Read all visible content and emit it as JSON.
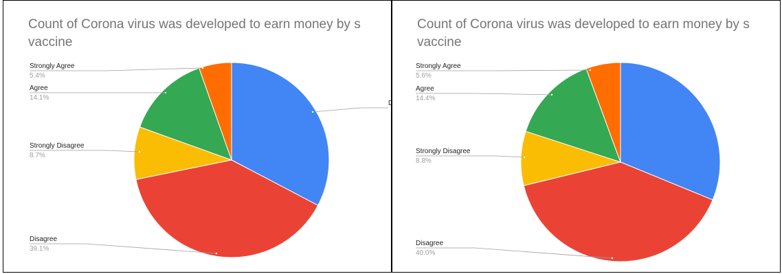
{
  "chart_data": [
    {
      "type": "pie",
      "title": "Count of Corona virus was developed to earn money by s vaccine",
      "title_lines": [
        "Count of Corona virus was developed to earn money by s",
        "vaccine"
      ],
      "slices": [
        {
          "label": "D",
          "value": 32.7,
          "percent_label": "",
          "color": "#4285f4"
        },
        {
          "label": "Disagree",
          "value": 39.1,
          "percent_label": "39.1%",
          "color": "#ea4335"
        },
        {
          "label": "Strongly Disagree",
          "value": 8.7,
          "percent_label": "8.7%",
          "color": "#fbbc04"
        },
        {
          "label": "Agree",
          "value": 14.1,
          "percent_label": "14.1%",
          "color": "#34a853"
        },
        {
          "label": "Strongly Agree",
          "value": 5.4,
          "percent_label": "5.4%",
          "color": "#ff6d01"
        }
      ]
    },
    {
      "type": "pie",
      "title": "Count of Corona virus was developed to earn money by s vaccine",
      "title_lines": [
        "Count of Corona virus was developed to earn money by s",
        "vaccine"
      ],
      "slices": [
        {
          "label": "",
          "value": 31.2,
          "percent_label": "",
          "color": "#4285f4"
        },
        {
          "label": "Disagree",
          "value": 40.0,
          "percent_label": "40.0%",
          "color": "#ea4335"
        },
        {
          "label": "Strongly Disagree",
          "value": 8.8,
          "percent_label": "8.8%",
          "color": "#fbbc04"
        },
        {
          "label": "Agree",
          "value": 14.4,
          "percent_label": "14.4%",
          "color": "#34a853"
        },
        {
          "label": "Strongly Agree",
          "value": 5.6,
          "percent_label": "5.6%",
          "color": "#ff6d01"
        }
      ]
    }
  ]
}
